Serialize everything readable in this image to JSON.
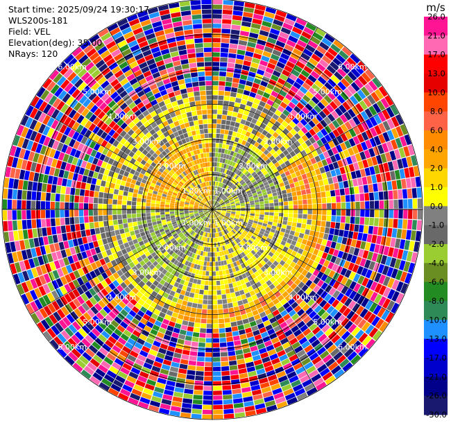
{
  "info": {
    "start_time": "Start time: 2025/09/24 19:30:17",
    "instrument": "WLS200s-181",
    "field": "Field: VEL",
    "elevation": "Elevation(deg): 35.00",
    "nrays": "NRays: 120"
  },
  "chart_data": {
    "type": "heatmap",
    "projection": "polar-ppi",
    "field": "VEL",
    "elevation_deg": 35.0,
    "n_rays": 120,
    "max_range_km": 6.0,
    "range_ring_labels": [
      "1.00km",
      "2.00km",
      "3.00km",
      "4.00km",
      "5.00km",
      "6.00km"
    ],
    "inner_region": {
      "description_range_km": [
        0,
        3.3
      ],
      "dominant_sectors": [
        {
          "from_deg": 270,
          "to_deg": 360,
          "range_km": [
            0,
            2
          ],
          "value_ms": 3.0
        },
        {
          "from_deg": 0,
          "to_deg": 90,
          "range_km": [
            0,
            2
          ],
          "value_ms": -1.5
        },
        {
          "from_deg": 90,
          "to_deg": 200,
          "range_km": [
            0,
            2.8
          ],
          "value_ms": 0.5
        },
        {
          "from_deg": 200,
          "to_deg": 270,
          "range_km": [
            0,
            2.8
          ],
          "value_ms": -2.0
        }
      ]
    },
    "colorbar": {
      "unit": "m/s",
      "ticks": [
        "26.0",
        "21.0",
        "17.0",
        "13.0",
        "10.0",
        "8.0",
        "6.0",
        "4.0",
        "2.0",
        "1.0",
        "0.0",
        "-1.0",
        "-2.0",
        "-4.0",
        "-6.0",
        "-8.0",
        "-10.0",
        "-13.0",
        "-17.0",
        "-21.0",
        "-26.0",
        "-30.0"
      ],
      "colors": [
        "#ff1493",
        "#ff69b4",
        "#ff0000",
        "#e60000",
        "#ff4500",
        "#ff6347",
        "#ff8c00",
        "#ffa500",
        "#ffd700",
        "#ffff00",
        "#808080",
        "#696969",
        "#9acd32",
        "#6b8e23",
        "#228b22",
        "#2e8b57",
        "#1e90ff",
        "#0000ff",
        "#0000cd",
        "#00008b",
        "#191970"
      ]
    }
  }
}
